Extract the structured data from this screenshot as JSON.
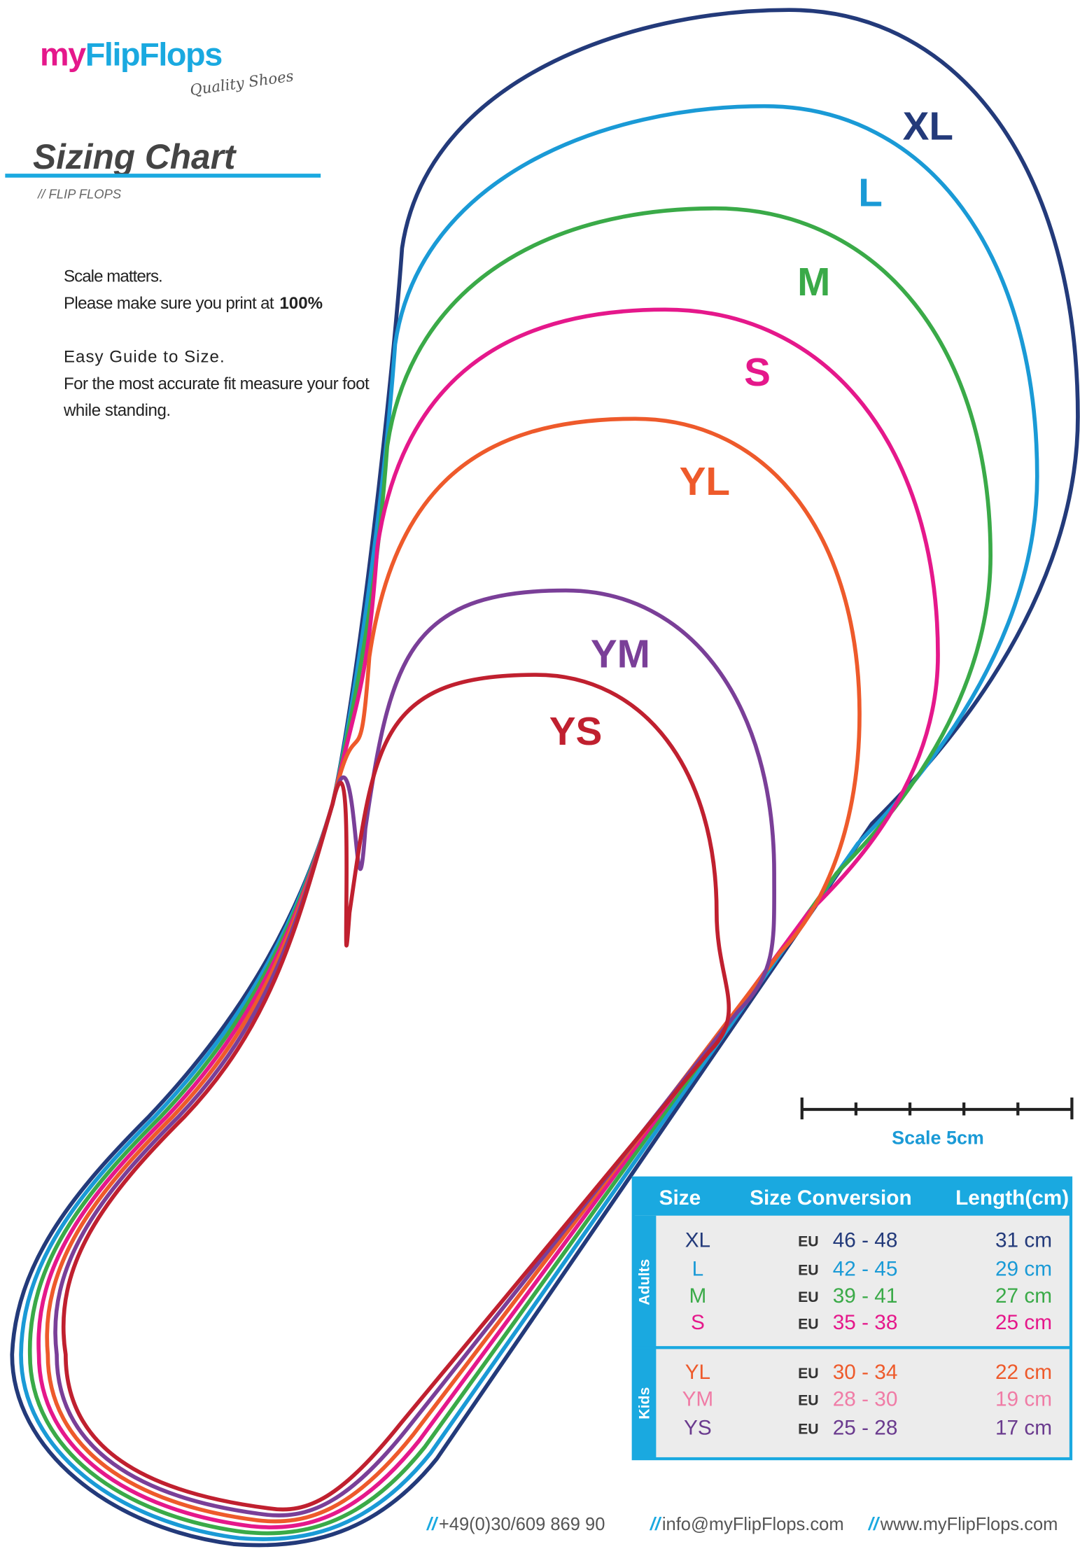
{
  "header": {
    "logo_my": "my",
    "logo_brand": "FlipFlops",
    "tagline": "Quality Shoes",
    "title": "Sizing Chart",
    "subtitle": "// FLIP FLOPS"
  },
  "instructions": {
    "line1": "Scale matters.",
    "line2": "Please make sure you print at",
    "line2_bold": "100%",
    "line3": "Easy Guide to Size.",
    "line4": "For the most accurate fit measure your foot",
    "line5": "while standing."
  },
  "outlines": [
    {
      "label": "XL",
      "color": "#233a7a"
    },
    {
      "label": "L",
      "color": "#1a9ad6"
    },
    {
      "label": "M",
      "color": "#3aaa48"
    },
    {
      "label": "S",
      "color": "#e5188b"
    },
    {
      "label": "YL",
      "color": "#ee5a2b"
    },
    {
      "label": "YM",
      "color": "#7a3f98"
    },
    {
      "label": "YS",
      "color": "#c0202f"
    }
  ],
  "scale": {
    "label": "Scale 5cm"
  },
  "table": {
    "headers": [
      "Size",
      "Size Conversion",
      "Length(cm)"
    ],
    "groups": [
      {
        "name": "Adults",
        "rows": [
          {
            "size": "XL",
            "region": "EU",
            "range": "46 - 48",
            "length": "31 cm",
            "color": "#233a7a"
          },
          {
            "size": "L",
            "region": "EU",
            "range": "42 - 45",
            "length": "29 cm",
            "color": "#1a9ad6"
          },
          {
            "size": "M",
            "region": "EU",
            "range": "39 - 41",
            "length": "27 cm",
            "color": "#3aaa48"
          },
          {
            "size": "S",
            "region": "EU",
            "range": "35 - 38",
            "length": "25 cm",
            "color": "#e5188b"
          }
        ]
      },
      {
        "name": "Kids",
        "rows": [
          {
            "size": "YL",
            "region": "EU",
            "range": "30 - 34",
            "length": "22 cm",
            "color": "#ee5a2b"
          },
          {
            "size": "YM",
            "region": "EU",
            "range": "28 - 30",
            "length": "19 cm",
            "color": "#f07ca6"
          },
          {
            "size": "YS",
            "region": "EU",
            "range": "25 - 28",
            "length": "17 cm",
            "color": "#6a3a8e"
          }
        ]
      }
    ]
  },
  "footer": [
    {
      "sep": "//",
      "text": "+49(0)30/609 869 90"
    },
    {
      "sep": "//",
      "text": "info@myFlipFlops.com"
    },
    {
      "sep": "//",
      "text": "www.myFlipFlops.com"
    }
  ]
}
